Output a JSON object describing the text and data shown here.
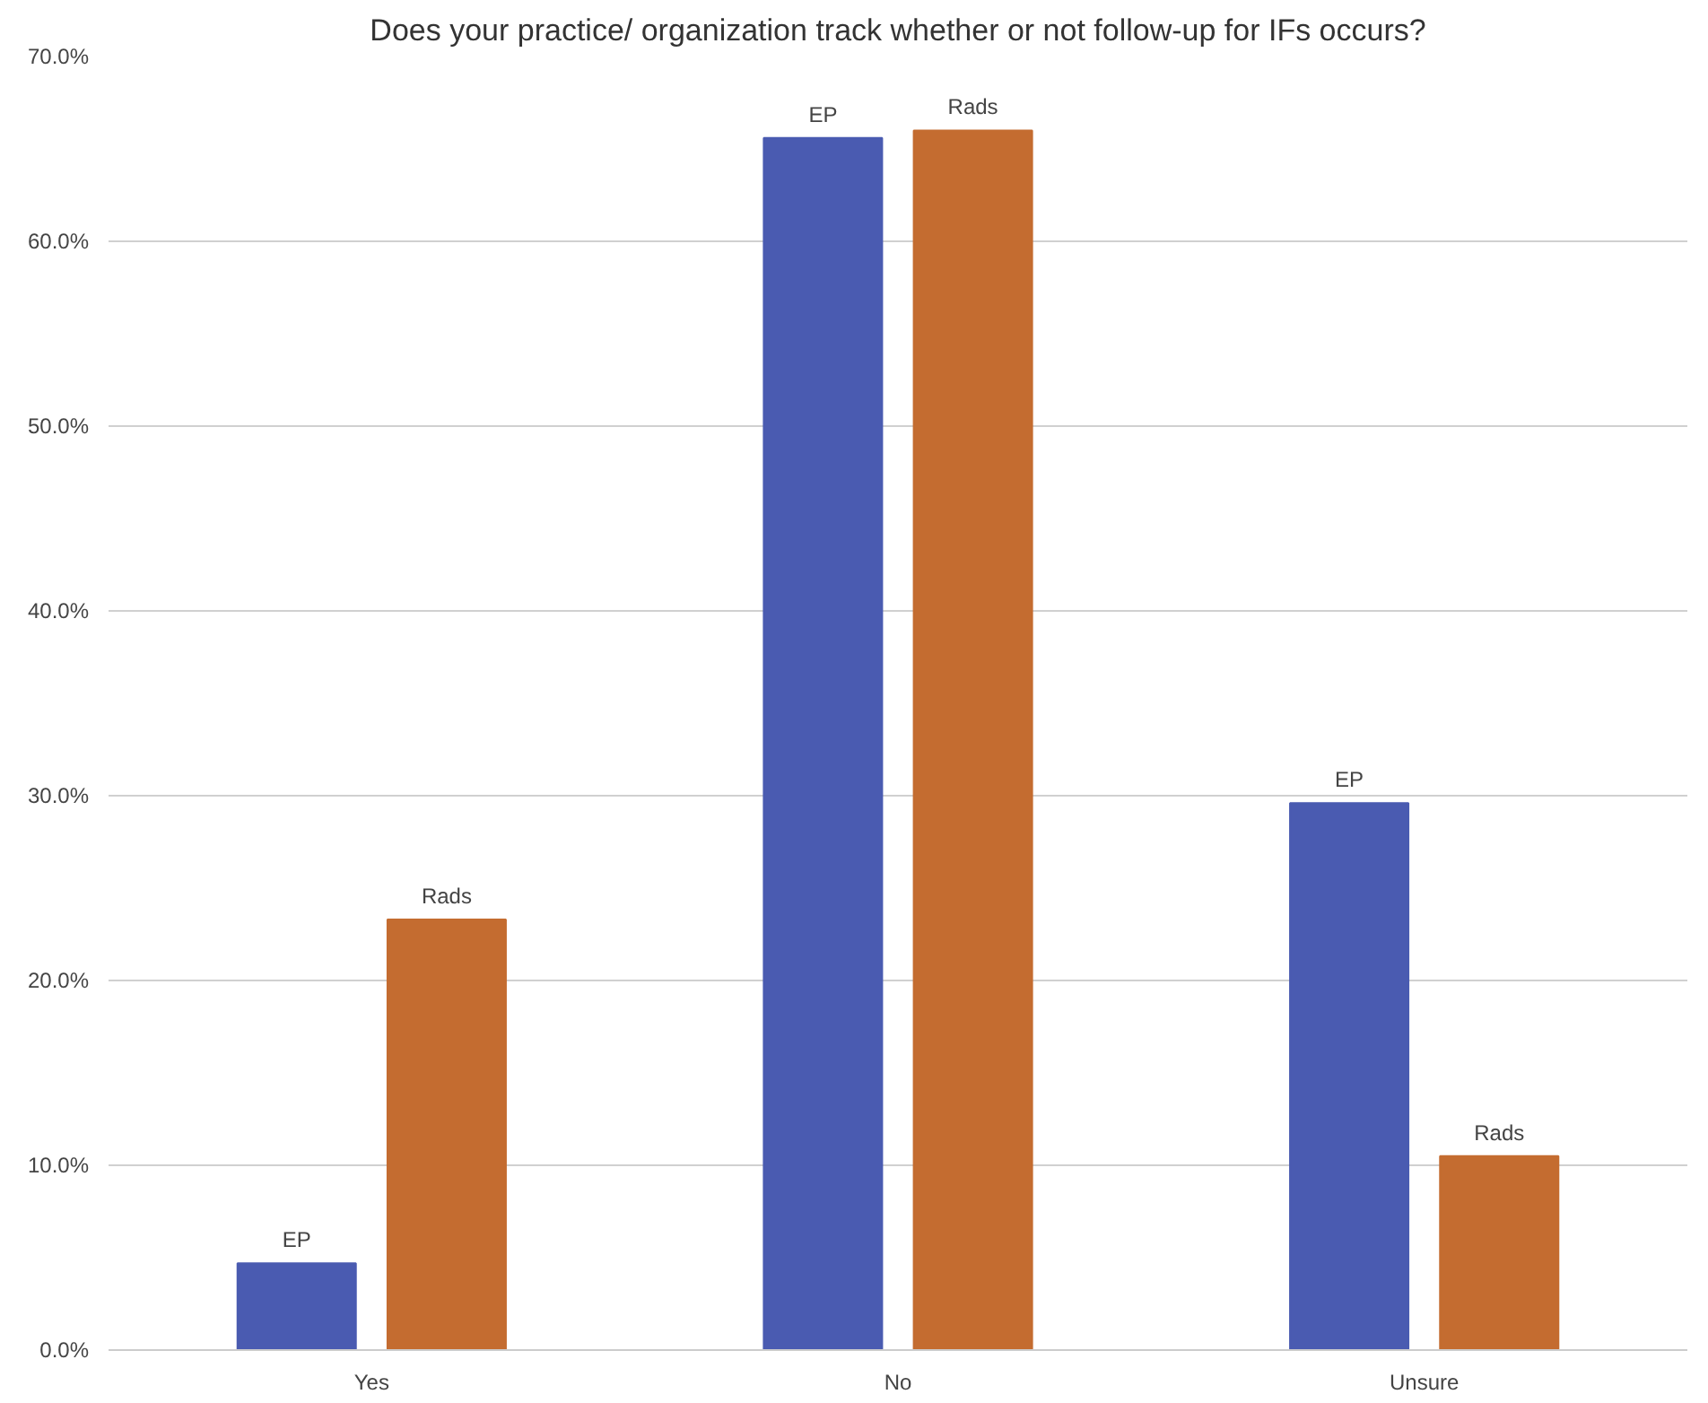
{
  "chart_data": {
    "type": "bar",
    "title": "Does your practice/ organization track whether or not follow-up for IFs occurs?",
    "categories": [
      "Yes",
      "No",
      "Unsure"
    ],
    "series": [
      {
        "name": "EP",
        "color": "#4a5bb1",
        "values": [
          4.7,
          65.6,
          29.6
        ]
      },
      {
        "name": "Rads",
        "color": "#c46c30",
        "values": [
          23.3,
          66.0,
          10.5
        ]
      }
    ],
    "ylim": [
      0,
      70
    ],
    "yticks": [
      {
        "value": 0,
        "label": "0.0%"
      },
      {
        "value": 10,
        "label": "10.0%"
      },
      {
        "value": 20,
        "label": "20.0%"
      },
      {
        "value": 30,
        "label": "30.0%"
      },
      {
        "value": 40,
        "label": "40.0%"
      },
      {
        "value": 50,
        "label": "50.0%"
      },
      {
        "value": 60,
        "label": "60.0%"
      },
      {
        "value": 70,
        "label": "70.0%"
      }
    ],
    "grid": "y"
  }
}
